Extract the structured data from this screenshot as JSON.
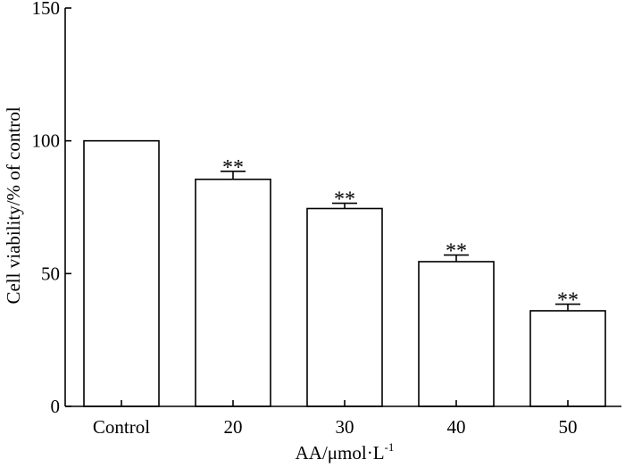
{
  "chart_data": {
    "type": "bar",
    "title": "",
    "xlabel": "AA/μmol·L",
    "xlabel_superscript": "-1",
    "ylabel": "Cell viability/% of control",
    "ylim": [
      0,
      150
    ],
    "yticks": [
      0,
      50,
      100,
      150
    ],
    "categories": [
      "Control",
      "20",
      "30",
      "40",
      "50"
    ],
    "values": [
      100,
      85.5,
      74.5,
      54.5,
      36
    ],
    "errors": [
      0,
      3,
      2,
      2.5,
      2.5
    ],
    "significance": [
      "",
      "**",
      "**",
      "**",
      "**"
    ],
    "bar_fill": "#ffffff",
    "bar_stroke": "#000000",
    "grid": false,
    "legend": "none"
  }
}
